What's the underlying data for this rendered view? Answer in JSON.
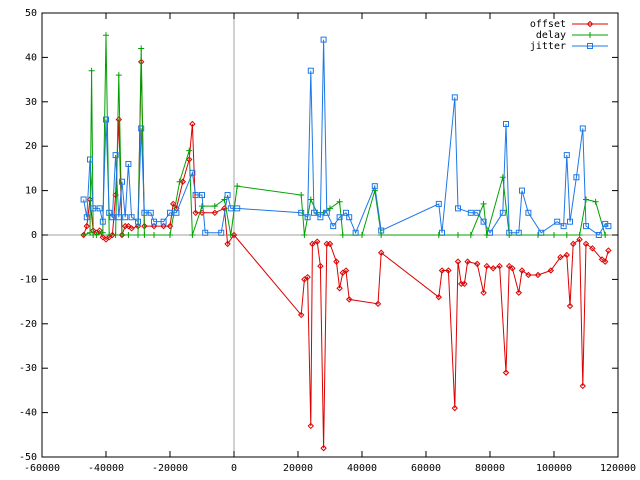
{
  "chart_data": {
    "type": "line",
    "xlim": [
      -60000,
      120000
    ],
    "xticks": [
      -60000,
      -40000,
      -20000,
      0,
      20000,
      40000,
      60000,
      80000,
      100000,
      120000
    ],
    "ylim": [
      -50,
      50
    ],
    "yticks": [
      -50,
      -40,
      -30,
      -20,
      -10,
      0,
      10,
      20,
      30,
      40,
      50
    ],
    "legend": "top-right",
    "series": [
      {
        "name": "offset",
        "color": "#dd0000",
        "marker": "diamond",
        "x": [
          -47000,
          -46000,
          -45000,
          -44000,
          -43000,
          -42000,
          -41000,
          -40000,
          -39000,
          -38000,
          -37000,
          -36000,
          -35000,
          -34000,
          -33000,
          -32000,
          -30000,
          -29000,
          -28000,
          -25000,
          -22000,
          -20000,
          -19000,
          -18000,
          -16000,
          -14000,
          -13000,
          -12000,
          -10000,
          -6000,
          -3000,
          -2000,
          0,
          21000,
          22000,
          23000,
          24000,
          24500,
          26000,
          27000,
          28000,
          29000,
          30000,
          32000,
          33000,
          34000,
          35000,
          36000,
          45000,
          46000,
          64000,
          65000,
          67000,
          69000,
          70000,
          71000,
          72000,
          73000,
          76000,
          78000,
          79000,
          81000,
          83000,
          85000,
          86000,
          87000,
          89000,
          90000,
          92000,
          95000,
          99000,
          102000,
          104000,
          105000,
          106000,
          108000,
          109000,
          110000,
          112000,
          115000,
          116000,
          117000
        ],
        "values": [
          0,
          2,
          8,
          1,
          0.5,
          1,
          -0.5,
          -1,
          -0.5,
          0,
          9,
          26,
          0,
          2,
          2,
          1.5,
          2,
          39,
          2,
          2,
          2,
          2,
          7,
          6,
          12,
          17,
          25,
          5,
          5,
          5,
          6,
          -2,
          0,
          -18,
          -10,
          -9.5,
          -43,
          -2,
          -1.5,
          -7,
          -48,
          -2,
          -2,
          -6,
          -12,
          -8.5,
          -8,
          -14.5,
          -15.5,
          -4,
          -14,
          -8,
          -8,
          -39,
          -6,
          -11,
          -11,
          -6,
          -6.5,
          -13,
          -7,
          -7.5,
          -7,
          -31,
          -7,
          -7.5,
          -13,
          -8,
          -9,
          -9,
          -8,
          -5,
          -4.5,
          -16,
          -2,
          -1,
          -34,
          -2,
          -3,
          -5.5,
          -6,
          -3.5
        ]
      },
      {
        "name": "delay",
        "color": "#00a000",
        "marker": "plus",
        "x": [
          -47000,
          -45000,
          -44500,
          -44000,
          -43000,
          -41000,
          -40000,
          -39000,
          -37000,
          -36000,
          -35000,
          -33000,
          -30000,
          -29000,
          -28000,
          -25000,
          -20000,
          -17000,
          -14000,
          -13000,
          -10000,
          -6000,
          -3000,
          -1000,
          1000,
          21000,
          22000,
          24000,
          26000,
          28000,
          30000,
          33000,
          34000,
          40000,
          44000,
          46000,
          64000,
          70000,
          74000,
          78000,
          79000,
          84000,
          86000,
          95000,
          100000,
          104000,
          108000,
          110000,
          113000,
          116000
        ],
        "values": [
          0,
          0.5,
          37,
          0,
          0,
          0.5,
          45,
          0,
          0,
          36,
          0,
          0,
          0,
          42,
          0,
          0,
          0,
          12,
          19,
          0,
          6.5,
          6.5,
          8,
          0,
          11,
          9,
          0,
          8,
          5,
          5,
          6,
          7.5,
          0,
          0,
          10,
          0,
          0,
          0,
          0,
          7,
          0,
          13,
          0,
          0,
          0,
          0,
          0,
          8,
          7.5,
          0
        ]
      },
      {
        "name": "jitter",
        "color": "#1e78e6",
        "marker": "square",
        "x": [
          -47000,
          -46000,
          -45000,
          -44000,
          -42000,
          -41000,
          -40000,
          -39000,
          -38000,
          -37000,
          -36000,
          -35000,
          -34000,
          -33000,
          -32000,
          -30000,
          -29000,
          -28000,
          -26000,
          -25000,
          -22000,
          -20000,
          -18000,
          -13000,
          -12000,
          -10000,
          -9000,
          -4000,
          -2000,
          -1000,
          1000,
          21000,
          23000,
          24000,
          25000,
          27000,
          28000,
          29000,
          31000,
          33000,
          35000,
          36000,
          38000,
          44000,
          46000,
          64000,
          65000,
          69000,
          70000,
          74000,
          76000,
          78000,
          80000,
          84000,
          85000,
          86000,
          89000,
          90000,
          92000,
          96000,
          101000,
          103000,
          104000,
          105000,
          107000,
          109000,
          110000,
          114000,
          116000,
          117000
        ],
        "values": [
          8,
          4,
          17,
          6,
          6,
          3,
          26,
          5,
          4,
          18,
          4,
          12,
          4,
          16,
          4,
          3,
          24,
          5,
          5,
          3,
          3,
          5,
          5,
          14,
          9,
          9,
          0.5,
          0.5,
          9,
          6,
          6,
          5,
          4,
          37,
          5,
          4,
          44,
          5,
          2,
          4,
          5,
          4,
          0.5,
          11,
          1,
          7,
          0.5,
          31,
          6,
          5,
          5,
          3,
          0.5,
          5,
          25,
          0.5,
          0.5,
          10,
          5,
          0.5,
          3,
          2,
          18,
          3,
          13,
          24,
          2,
          0,
          2.5,
          2
        ]
      }
    ]
  }
}
